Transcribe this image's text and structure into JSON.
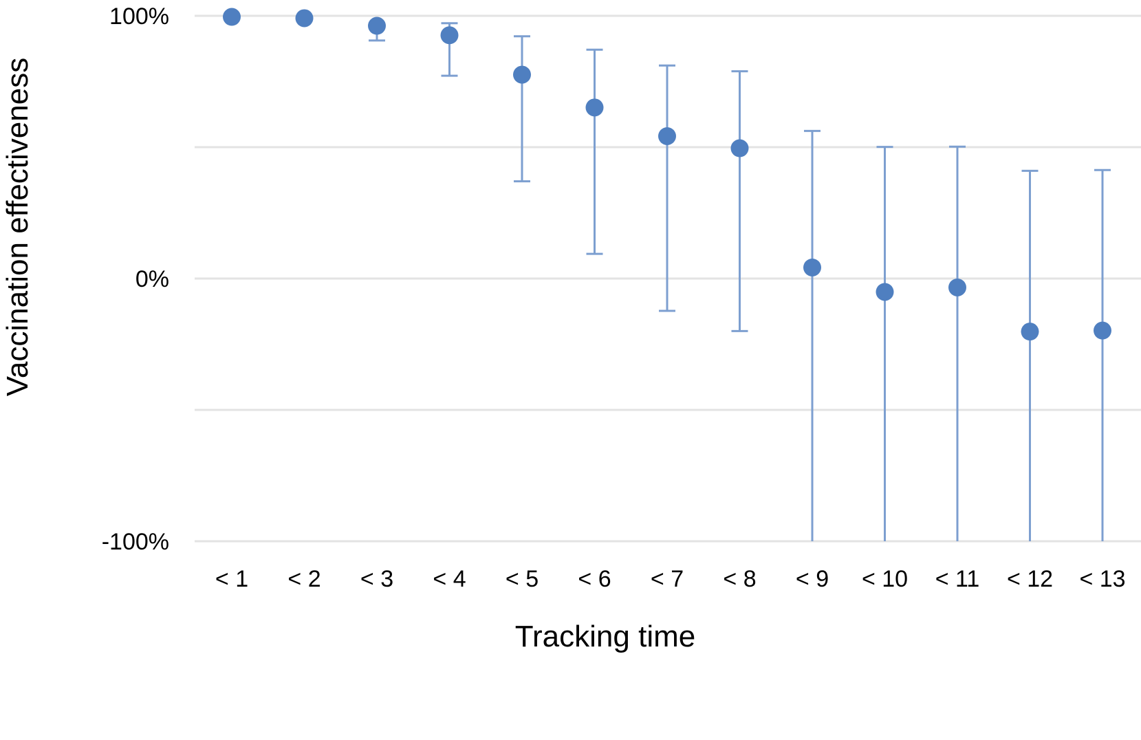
{
  "chart_data": {
    "type": "scatter",
    "title": "",
    "xlabel": "Tracking time",
    "ylabel": "Vaccination effectiveness",
    "categories": [
      "< 1",
      "< 2",
      "< 3",
      "< 4",
      "< 5",
      "< 6",
      "< 7",
      "< 8",
      "< 9",
      "< 10",
      "< 11",
      "< 12",
      "< 13"
    ],
    "ylim": [
      -100,
      100
    ],
    "yticks": [
      100,
      50,
      0,
      -50,
      -100
    ],
    "ytick_labels": [
      "100%",
      "",
      "0%",
      "",
      "-100%"
    ],
    "grid": true,
    "legend": "none",
    "series": [
      {
        "values": [
          99.6,
          99.1,
          96.2,
          92.6,
          77.6,
          65.1,
          54.2,
          49.6,
          4.2,
          -5.1,
          -3.4,
          -20.2,
          -19.8
        ],
        "lower": [
          99.6,
          99.1,
          90.6,
          77.2,
          37.0,
          9.4,
          -12.3,
          -20.0,
          -100,
          -100,
          -100,
          -100,
          -100
        ],
        "upper": [
          99.6,
          99.1,
          97.2,
          97.2,
          92.2,
          87.1,
          81.1,
          78.9,
          56.2,
          50.1,
          50.2,
          41.0,
          41.3
        ]
      }
    ],
    "colors": {
      "marker": "#4f7fc0",
      "errorbar": "#7d9fd0",
      "grid": "#e3e3e3"
    }
  }
}
